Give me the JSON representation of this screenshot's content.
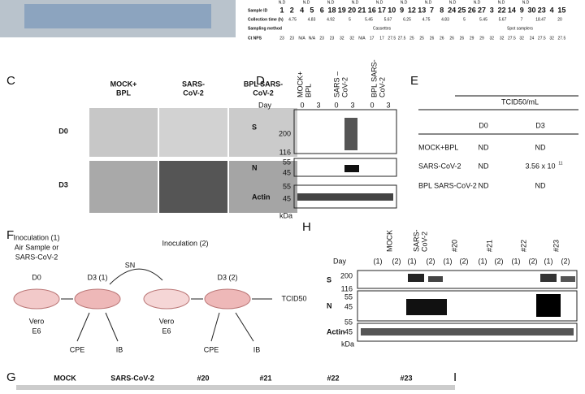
{
  "top_table": {
    "row_labels": [
      "Sample ID",
      "Collection time (h)",
      "Sampling method",
      "Ct NPS"
    ],
    "sample_ids": [
      "1",
      "2",
      "4",
      "5",
      "6",
      "18",
      "19",
      "20",
      "21",
      "16",
      "17",
      "10",
      "9",
      "12",
      "13",
      "7",
      "8",
      "24",
      "25",
      "26",
      "27",
      "3",
      "22",
      "14",
      "9",
      "30",
      "23",
      "4",
      "15"
    ],
    "collection_times": [
      "4.75",
      "4.83",
      "4.92",
      "5",
      "5.45",
      "5.67",
      "6.25",
      "4.75",
      "4.83",
      "5",
      "5.45",
      "5.67",
      "7",
      "18.47",
      "20"
    ],
    "sampling_methods": [
      "Cassettes",
      "Spot samplers"
    ],
    "ct_nps": [
      "23",
      "23",
      "N/A",
      "N/A",
      "23",
      "23",
      "32",
      "32",
      "N/A",
      "17",
      "17",
      "27.5",
      "27.5",
      "25",
      "25",
      "26",
      "26",
      "26",
      "26",
      "29",
      "29",
      "32",
      "32",
      "27.5",
      "32",
      "24",
      "27.5",
      "32",
      "27.5"
    ],
    "nd_labels": [
      "N.D",
      "N.D",
      "N.D",
      "N.D",
      "N.D",
      "N.D",
      "N.D",
      "N.D",
      "N.D",
      "N.D",
      "N.D"
    ]
  },
  "panel_c": {
    "label": "C",
    "columns": [
      [
        "MOCK+",
        "BPL"
      ],
      [
        "SARS-",
        "CoV-2"
      ],
      [
        "BPL SARS-",
        "CoV-2"
      ]
    ],
    "rows": [
      "D0",
      "D3"
    ]
  },
  "panel_d": {
    "label": "D",
    "columns": [
      [
        "MOCK+",
        "BPL"
      ],
      [
        "SARS –",
        "CoV-2"
      ],
      [
        "BPL SARS-",
        "CoV-2"
      ]
    ],
    "day": "Day",
    "days": [
      "0",
      "3",
      "0",
      "3",
      "0",
      "3"
    ],
    "blots": [
      "S",
      "N",
      "Actin"
    ],
    "ladder": [
      "200",
      "116",
      "55",
      "45",
      "55",
      "45"
    ],
    "unit": "kDa"
  },
  "panel_e": {
    "label": "E",
    "header": "TCID50/mL",
    "columns": [
      "D0",
      "D3"
    ],
    "rows": [
      [
        "MOCK+BPL",
        "ND",
        "ND"
      ],
      [
        "SARS-CoV-2",
        "ND",
        "3.56 x 10"
      ],
      [
        "BPL SARS-CoV-2",
        "ND",
        "ND"
      ]
    ],
    "exponent": "11"
  },
  "panel_f": {
    "label": "F",
    "inoculation1": [
      "Inoculation (1)",
      "Air Sample or",
      "SARS-CoV-2"
    ],
    "inoculation2": "Inoculation (2)",
    "stages": [
      "D0",
      "D3 (1)",
      "D3 (2)"
    ],
    "sn": "SN",
    "result": "TCID50",
    "cells": [
      "Vero",
      "E6",
      "Vero",
      "E6"
    ],
    "assays": [
      "CPE",
      "IB",
      "CPE",
      "IB"
    ]
  },
  "panel_h": {
    "label": "H",
    "columns": [
      [
        "MOCK"
      ],
      [
        "SARS-",
        "CoV-2"
      ],
      [
        "#20"
      ],
      [
        "#21"
      ],
      [
        "#22"
      ],
      [
        "#23"
      ]
    ],
    "day": "Day",
    "days": [
      "(1)",
      "(2)",
      "(1)",
      "(2)",
      "(1)",
      "(2)",
      "(1)",
      "(2)",
      "(1)",
      "(2)",
      "(1)",
      "(2)"
    ],
    "blots": [
      "S",
      "N",
      "Actin"
    ],
    "ladder": [
      "200",
      "116",
      "55",
      "45",
      "55",
      "45"
    ],
    "unit": "kDa"
  },
  "panel_g": {
    "label": "G",
    "columns": [
      "MOCK",
      "SARS-CoV-2",
      "#20",
      "#21",
      "#22",
      "#23"
    ]
  },
  "panel_i": {
    "label": "I"
  }
}
